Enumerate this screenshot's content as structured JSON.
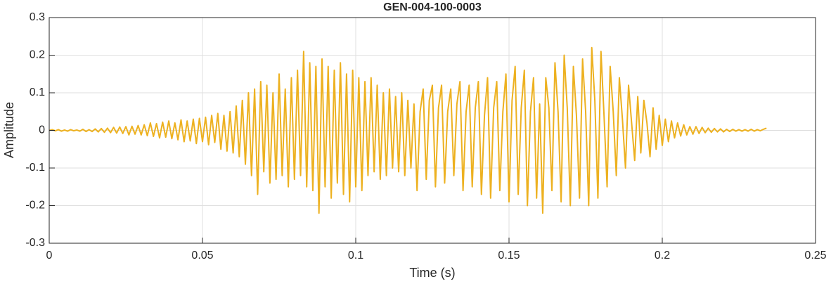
{
  "chart_data": {
    "type": "line",
    "title": "GEN-004-100-0003",
    "xlabel": "Time (s)",
    "ylabel": "Amplitude",
    "color": "#EDB120",
    "grid": true,
    "xlim": [
      0,
      0.25
    ],
    "xticks": [
      0,
      0.05,
      0.1,
      0.15,
      0.2,
      0.25
    ],
    "ylim": [
      -0.3,
      0.3
    ],
    "yticks": [
      -0.3,
      -0.2,
      -0.1,
      0,
      0.1,
      0.2,
      0.3
    ],
    "x": [
      0,
      0.001,
      0.002,
      0.003,
      0.004,
      0.005,
      0.006,
      0.007,
      0.008,
      0.009,
      0.01,
      0.011,
      0.012,
      0.013,
      0.014,
      0.015,
      0.016,
      0.017,
      0.018,
      0.019,
      0.02,
      0.021,
      0.022,
      0.023,
      0.024,
      0.025,
      0.026,
      0.027,
      0.028,
      0.029,
      0.03,
      0.031,
      0.032,
      0.033,
      0.034,
      0.035,
      0.036,
      0.037,
      0.038,
      0.039,
      0.04,
      0.041,
      0.042,
      0.043,
      0.044,
      0.045,
      0.046,
      0.047,
      0.048,
      0.049,
      0.05,
      0.051,
      0.052,
      0.053,
      0.054,
      0.055,
      0.056,
      0.057,
      0.058,
      0.059,
      0.06,
      0.061,
      0.062,
      0.063,
      0.064,
      0.065,
      0.066,
      0.067,
      0.068,
      0.069,
      0.07,
      0.071,
      0.072,
      0.073,
      0.074,
      0.075,
      0.076,
      0.077,
      0.078,
      0.079,
      0.08,
      0.081,
      0.082,
      0.083,
      0.084,
      0.085,
      0.086,
      0.087,
      0.088,
      0.089,
      0.09,
      0.091,
      0.092,
      0.093,
      0.094,
      0.095,
      0.096,
      0.097,
      0.098,
      0.099,
      0.1,
      0.101,
      0.102,
      0.103,
      0.104,
      0.105,
      0.106,
      0.107,
      0.108,
      0.109,
      0.11,
      0.111,
      0.112,
      0.113,
      0.114,
      0.115,
      0.116,
      0.117,
      0.118,
      0.119,
      0.12,
      0.121,
      0.122,
      0.123,
      0.124,
      0.125,
      0.126,
      0.127,
      0.128,
      0.129,
      0.13,
      0.131,
      0.132,
      0.133,
      0.134,
      0.135,
      0.136,
      0.137,
      0.138,
      0.139,
      0.14,
      0.141,
      0.142,
      0.143,
      0.144,
      0.145,
      0.146,
      0.147,
      0.148,
      0.149,
      0.15,
      0.151,
      0.152,
      0.153,
      0.154,
      0.155,
      0.156,
      0.157,
      0.158,
      0.159,
      0.16,
      0.161,
      0.162,
      0.163,
      0.164,
      0.165,
      0.166,
      0.167,
      0.168,
      0.169,
      0.17,
      0.171,
      0.172,
      0.173,
      0.174,
      0.175,
      0.176,
      0.177,
      0.178,
      0.179,
      0.18,
      0.181,
      0.182,
      0.183,
      0.184,
      0.185,
      0.186,
      0.187,
      0.188,
      0.189,
      0.19,
      0.191,
      0.192,
      0.193,
      0.194,
      0.195,
      0.196,
      0.197,
      0.198,
      0.199,
      0.2,
      0.201,
      0.202,
      0.203,
      0.204,
      0.205,
      0.206,
      0.207,
      0.208,
      0.209,
      0.21,
      0.211,
      0.212,
      0.213,
      0.214,
      0.215,
      0.216,
      0.217,
      0.218,
      0.219,
      0.22,
      0.221,
      0.222,
      0.223,
      0.224,
      0.225,
      0.226,
      0.227,
      0.228,
      0.229,
      0.23,
      0.231,
      0.232,
      0.233,
      0.234
    ],
    "values": [
      0,
      0.002,
      -0.001,
      0.002,
      -0.002,
      0.001,
      -0.002,
      0.002,
      -0.001,
      0.001,
      -0.002,
      0.003,
      -0.003,
      0.002,
      -0.003,
      0.004,
      -0.004,
      0.005,
      -0.005,
      0.006,
      -0.006,
      0.008,
      -0.007,
      0.009,
      -0.008,
      0.01,
      -0.012,
      0.011,
      -0.01,
      0.013,
      -0.012,
      0.015,
      -0.014,
      0.02,
      -0.016,
      0.018,
      -0.02,
      0.022,
      -0.018,
      0.025,
      -0.022,
      0.02,
      -0.025,
      0.028,
      -0.03,
      0.025,
      -0.028,
      0.03,
      -0.035,
      0.032,
      -0.03,
      0.035,
      -0.038,
      0.04,
      -0.032,
      0.045,
      -0.05,
      0.04,
      -0.055,
      0.05,
      -0.06,
      0.065,
      -0.07,
      0.08,
      -0.09,
      0.1,
      -0.12,
      0.11,
      -0.17,
      0.13,
      -0.11,
      0.12,
      -0.14,
      0.1,
      -0.13,
      0.15,
      -0.12,
      0.11,
      -0.15,
      0.14,
      -0.13,
      0.16,
      -0.12,
      0.21,
      -0.15,
      0.18,
      -0.16,
      0.17,
      -0.22,
      0.19,
      -0.15,
      0.17,
      -0.18,
      0.16,
      -0.14,
      0.18,
      -0.17,
      0.15,
      -0.19,
      0.16,
      -0.15,
      0.14,
      -0.16,
      0.13,
      -0.12,
      0.14,
      -0.11,
      0.12,
      -0.13,
      0.1,
      -0.12,
      0.11,
      -0.1,
      0.09,
      -0.11,
      0.1,
      -0.12,
      0.08,
      -0.1,
      0.07,
      -0.16,
      0.05,
      0.11,
      -0.13,
      0.08,
      0.12,
      -0.15,
      0.06,
      0.12,
      -0.14,
      0.05,
      0.11,
      -0.12,
      0.07,
      0.13,
      -0.16,
      0.05,
      0.12,
      -0.15,
      0.06,
      0.13,
      -0.17,
      0.04,
      0.14,
      -0.18,
      0.06,
      0.13,
      -0.16,
      0.05,
      0.15,
      -0.19,
      0.08,
      0.17,
      -0.17,
      0.06,
      0.16,
      -0.2,
      0.05,
      0.14,
      -0.18,
      0.07,
      -0.22,
      0.14,
      0.06,
      -0.16,
      0.18,
      0.05,
      -0.19,
      0.2,
      0.06,
      -0.2,
      0.17,
      0.04,
      -0.18,
      0.19,
      0.05,
      -0.2,
      0.22,
      0.08,
      -0.18,
      0.21,
      0.04,
      -0.15,
      0.17,
      0.05,
      -0.12,
      0.14,
      0.03,
      -0.1,
      0.12,
      0.02,
      -0.08,
      0.09,
      -0.06,
      0.08,
      0.02,
      -0.07,
      0.06,
      -0.05,
      0.04,
      -0.04,
      0.03,
      -0.03,
      0.025,
      -0.02,
      0.02,
      -0.015,
      0.015,
      -0.012,
      0.01,
      -0.01,
      0.01,
      -0.008,
      0.008,
      -0.006,
      0.006,
      -0.005,
      0.005,
      -0.004,
      0.004,
      -0.004,
      0.003,
      -0.003,
      0.003,
      -0.002,
      0.002,
      -0.002,
      0.002,
      -0.002,
      0.003,
      -0.002,
      0.002,
      -0.001,
      0.003,
      0.006
    ]
  }
}
